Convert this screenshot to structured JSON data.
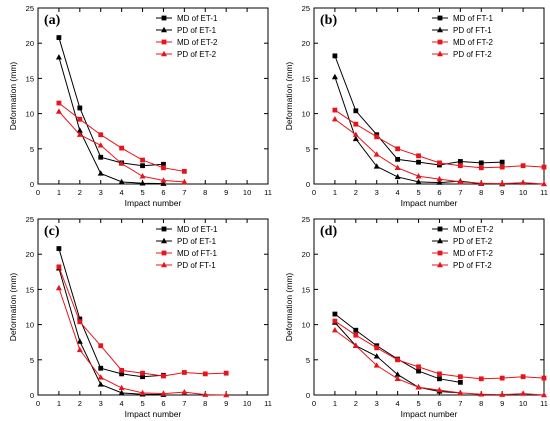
{
  "colors": {
    "black": "#000000",
    "red": "#e8141b"
  },
  "chart_data": [
    {
      "type": "line",
      "panel_label": "(a)",
      "xlabel": "Impact number",
      "ylabel": "Deformation (mm)",
      "xlim": [
        0,
        11
      ],
      "ylim": [
        0,
        25
      ],
      "xticks": [
        0,
        1,
        2,
        3,
        4,
        5,
        6,
        7,
        8,
        9,
        10,
        11
      ],
      "yticks": [
        0,
        5,
        10,
        15,
        20,
        25
      ],
      "legend_position": "top-right",
      "series": [
        {
          "name": "MD of ET-1",
          "color": "#000000",
          "marker": "square",
          "x": [
            1,
            2,
            3,
            4,
            5,
            6
          ],
          "y": [
            20.8,
            10.8,
            3.8,
            3.0,
            2.6,
            2.8
          ]
        },
        {
          "name": "PD of ET-1",
          "color": "#000000",
          "marker": "triangle",
          "x": [
            1,
            2,
            3,
            4,
            5,
            6
          ],
          "y": [
            18.0,
            7.6,
            1.5,
            0.3,
            0.1,
            0.05
          ]
        },
        {
          "name": "MD of ET-2",
          "color": "#e8141b",
          "marker": "square",
          "x": [
            1,
            2,
            3,
            4,
            5,
            6,
            7
          ],
          "y": [
            11.5,
            9.2,
            7.0,
            5.1,
            3.4,
            2.3,
            1.8
          ]
        },
        {
          "name": "PD of ET-2",
          "color": "#e8141b",
          "marker": "triangle",
          "x": [
            1,
            2,
            3,
            4,
            5,
            6,
            7
          ],
          "y": [
            10.3,
            7.0,
            5.5,
            2.9,
            1.1,
            0.5,
            0.3
          ]
        }
      ]
    },
    {
      "type": "line",
      "panel_label": "(b)",
      "xlabel": "Impact number",
      "ylabel": "Deformation (mm)",
      "xlim": [
        0,
        11
      ],
      "ylim": [
        0,
        25
      ],
      "xticks": [
        0,
        1,
        2,
        3,
        4,
        5,
        6,
        7,
        8,
        9,
        10,
        11
      ],
      "yticks": [
        0,
        5,
        10,
        15,
        20,
        25
      ],
      "legend_position": "top-right",
      "series": [
        {
          "name": "MD of FT-1",
          "color": "#000000",
          "marker": "square",
          "x": [
            1,
            2,
            3,
            4,
            5,
            6,
            7,
            8,
            9
          ],
          "y": [
            18.2,
            10.4,
            7.0,
            3.5,
            3.1,
            2.7,
            3.2,
            3.0,
            3.1
          ]
        },
        {
          "name": "PD of FT-1",
          "color": "#000000",
          "marker": "triangle",
          "x": [
            1,
            2,
            3,
            4,
            5,
            6,
            7,
            8,
            9
          ],
          "y": [
            15.2,
            6.4,
            2.5,
            1.0,
            0.3,
            0.2,
            0.4,
            0.05,
            0.0
          ]
        },
        {
          "name": "MD of FT-2",
          "color": "#e8141b",
          "marker": "square",
          "x": [
            1,
            2,
            3,
            4,
            5,
            6,
            7,
            8,
            9,
            10,
            11
          ],
          "y": [
            10.5,
            8.5,
            6.7,
            5.0,
            4.0,
            3.0,
            2.6,
            2.3,
            2.4,
            2.6,
            2.4
          ]
        },
        {
          "name": "PD of FT-2",
          "color": "#e8141b",
          "marker": "triangle",
          "x": [
            1,
            2,
            3,
            4,
            5,
            6,
            7,
            8,
            9,
            10,
            11
          ],
          "y": [
            9.2,
            7.0,
            4.2,
            2.3,
            1.1,
            0.7,
            0.3,
            0.1,
            0.05,
            0.2,
            0.0
          ]
        }
      ]
    },
    {
      "type": "line",
      "panel_label": "(c)",
      "xlabel": "Impact number",
      "ylabel": "Deformation (mm)",
      "xlim": [
        0,
        11
      ],
      "ylim": [
        0,
        25
      ],
      "xticks": [
        0,
        1,
        2,
        3,
        4,
        5,
        6,
        7,
        8,
        9,
        10,
        11
      ],
      "yticks": [
        0,
        5,
        10,
        15,
        20,
        25
      ],
      "legend_position": "top-right",
      "series": [
        {
          "name": "MD of ET-1",
          "color": "#000000",
          "marker": "square",
          "x": [
            1,
            2,
            3,
            4,
            5,
            6
          ],
          "y": [
            20.8,
            10.8,
            3.8,
            3.0,
            2.6,
            2.8
          ]
        },
        {
          "name": "PD of ET-1",
          "color": "#000000",
          "marker": "triangle",
          "x": [
            1,
            2,
            3,
            4,
            5,
            6
          ],
          "y": [
            18.0,
            7.6,
            1.5,
            0.3,
            0.1,
            0.05
          ]
        },
        {
          "name": "MD of FT-1",
          "color": "#e8141b",
          "marker": "square",
          "x": [
            1,
            2,
            3,
            4,
            5,
            6,
            7,
            8,
            9
          ],
          "y": [
            18.2,
            10.4,
            7.0,
            3.5,
            3.1,
            2.7,
            3.2,
            3.0,
            3.1
          ]
        },
        {
          "name": "PD of FT-1",
          "color": "#e8141b",
          "marker": "triangle",
          "x": [
            1,
            2,
            3,
            4,
            5,
            6,
            7,
            8,
            9
          ],
          "y": [
            15.2,
            6.4,
            2.5,
            1.0,
            0.3,
            0.2,
            0.4,
            0.05,
            0.0
          ]
        }
      ]
    },
    {
      "type": "line",
      "panel_label": "(d)",
      "xlabel": "Impact number",
      "ylabel": "Deformation (mm)",
      "xlim": [
        0,
        11
      ],
      "ylim": [
        0,
        25
      ],
      "xticks": [
        0,
        1,
        2,
        3,
        4,
        5,
        6,
        7,
        8,
        9,
        10,
        11
      ],
      "yticks": [
        0,
        5,
        10,
        15,
        20,
        25
      ],
      "legend_position": "top-right",
      "series": [
        {
          "name": "MD of ET-2",
          "color": "#000000",
          "marker": "square",
          "x": [
            1,
            2,
            3,
            4,
            5,
            6,
            7
          ],
          "y": [
            11.5,
            9.2,
            7.0,
            5.1,
            3.4,
            2.3,
            1.8
          ]
        },
        {
          "name": "PD of ET-2",
          "color": "#000000",
          "marker": "triangle",
          "x": [
            1,
            2,
            3,
            4,
            5,
            6,
            7
          ],
          "y": [
            10.3,
            7.0,
            5.5,
            2.9,
            1.1,
            0.5,
            0.3
          ]
        },
        {
          "name": "MD of FT-2",
          "color": "#e8141b",
          "marker": "square",
          "x": [
            1,
            2,
            3,
            4,
            5,
            6,
            7,
            8,
            9,
            10,
            11
          ],
          "y": [
            10.5,
            8.5,
            6.7,
            5.0,
            4.0,
            3.0,
            2.6,
            2.3,
            2.4,
            2.6,
            2.4
          ]
        },
        {
          "name": "PD of FT-2",
          "color": "#e8141b",
          "marker": "triangle",
          "x": [
            1,
            2,
            3,
            4,
            5,
            6,
            7,
            8,
            9,
            10,
            11
          ],
          "y": [
            9.2,
            7.0,
            4.2,
            2.3,
            1.1,
            0.7,
            0.3,
            0.1,
            0.05,
            0.2,
            0.0
          ]
        }
      ]
    }
  ]
}
